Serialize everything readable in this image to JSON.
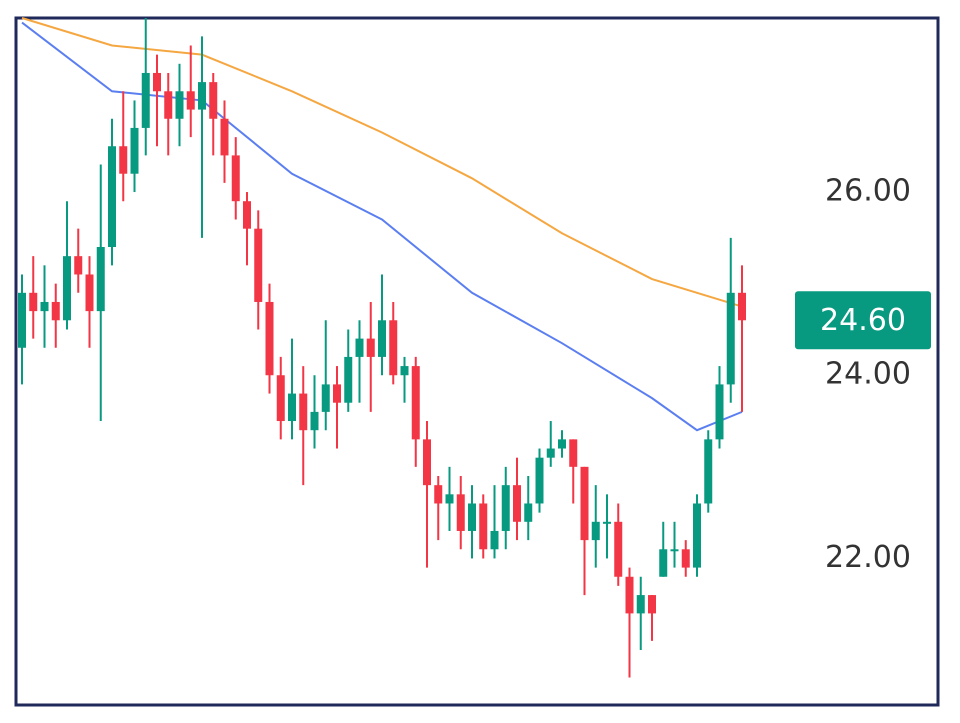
{
  "chart_data": {
    "type": "candlestick",
    "up_color": "#089981",
    "down_color": "#f23645",
    "open": [
      24.3,
      24.9,
      24.7,
      24.8,
      24.6,
      25.3,
      25.1,
      24.7,
      25.4,
      26.5,
      26.2,
      26.7,
      27.3,
      27.1,
      26.8,
      27.1,
      26.9,
      27.2,
      26.8,
      26.4,
      25.9,
      25.6,
      24.8,
      24.0,
      23.5,
      23.8,
      23.4,
      23.6,
      23.9,
      23.7,
      24.2,
      24.4,
      24.2,
      24.6,
      24.0,
      24.1,
      23.3,
      22.8,
      22.6,
      22.7,
      22.3,
      22.6,
      22.1,
      22.3,
      22.8,
      22.4,
      22.6,
      23.1,
      23.2,
      23.3,
      23.0,
      22.2,
      22.4,
      22.4,
      21.8,
      21.4,
      21.6,
      21.8,
      22.1,
      22.1,
      21.9,
      22.6,
      23.3,
      23.9,
      24.9
    ],
    "high": [
      25.1,
      25.3,
      25.2,
      25.0,
      25.9,
      25.6,
      25.3,
      26.3,
      26.8,
      27.1,
      27.0,
      27.9,
      27.5,
      27.3,
      27.4,
      27.6,
      27.7,
      27.3,
      27.0,
      26.6,
      26.0,
      25.8,
      25.0,
      24.2,
      24.4,
      24.1,
      24.0,
      24.6,
      24.1,
      24.5,
      24.6,
      24.8,
      25.1,
      24.8,
      24.2,
      24.2,
      23.5,
      22.9,
      23.0,
      22.9,
      22.8,
      22.7,
      22.8,
      23.0,
      23.1,
      22.9,
      23.2,
      23.5,
      23.4,
      23.3,
      23.0,
      22.8,
      22.7,
      22.6,
      21.9,
      21.8,
      21.6,
      22.4,
      22.4,
      22.2,
      22.7,
      23.4,
      24.1,
      25.5,
      25.2
    ],
    "low": [
      23.9,
      24.4,
      24.3,
      24.3,
      24.5,
      24.9,
      24.3,
      23.5,
      25.2,
      25.9,
      26.0,
      26.4,
      26.5,
      26.4,
      26.5,
      26.6,
      25.5,
      26.4,
      26.1,
      25.7,
      25.2,
      24.5,
      23.8,
      23.3,
      23.3,
      22.8,
      23.2,
      23.4,
      23.2,
      23.6,
      23.7,
      23.6,
      24.0,
      23.9,
      23.7,
      23.0,
      21.9,
      22.2,
      22.3,
      22.1,
      22.0,
      22.0,
      22.0,
      22.1,
      22.2,
      22.2,
      22.5,
      23.0,
      23.1,
      22.6,
      21.6,
      21.9,
      22.0,
      21.7,
      20.7,
      21.0,
      21.1,
      21.8,
      21.9,
      21.8,
      21.8,
      22.5,
      23.2,
      23.7,
      23.6
    ],
    "close": [
      24.9,
      24.7,
      24.8,
      24.6,
      25.3,
      25.1,
      24.7,
      25.4,
      26.5,
      26.2,
      26.7,
      27.3,
      27.1,
      26.8,
      27.1,
      26.9,
      27.2,
      26.8,
      26.4,
      25.9,
      25.6,
      24.8,
      24.0,
      23.5,
      23.8,
      23.4,
      23.6,
      23.9,
      23.7,
      24.2,
      24.4,
      24.2,
      24.6,
      24.0,
      24.1,
      23.3,
      22.8,
      22.6,
      22.7,
      22.3,
      22.6,
      22.1,
      22.3,
      22.8,
      22.4,
      22.6,
      23.1,
      23.2,
      23.3,
      23.0,
      22.2,
      22.4,
      22.4,
      21.8,
      21.4,
      21.6,
      21.4,
      22.1,
      22.1,
      21.9,
      22.6,
      23.3,
      23.9,
      24.9,
      24.6
    ],
    "lines": [
      {
        "color": "#f5a742",
        "x": [
          0,
          8,
          16,
          24,
          32,
          40,
          48,
          56,
          64
        ],
        "values": [
          27.9,
          27.6,
          27.5,
          27.1,
          26.65,
          26.15,
          25.55,
          25.05,
          24.75
        ]
      },
      {
        "color": "#5b7ff0",
        "x": [
          0,
          8,
          16,
          24,
          32,
          40,
          48,
          56,
          60,
          64
        ],
        "values": [
          27.85,
          27.1,
          27.0,
          26.2,
          25.7,
          24.9,
          24.35,
          23.75,
          23.4,
          23.6
        ]
      }
    ],
    "ylim": [
      20.4,
      27.9
    ],
    "yticks": [
      {
        "value": 22,
        "label": "22.00"
      },
      {
        "value": 24,
        "label": "24.00"
      },
      {
        "value": 26,
        "label": "26.00"
      }
    ],
    "price_label": {
      "value": 24.6,
      "label": "24.60",
      "color": "#089981"
    }
  }
}
